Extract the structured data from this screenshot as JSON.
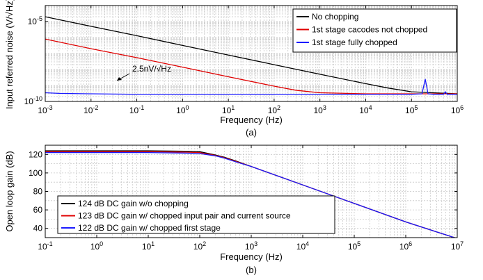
{
  "chart_data": [
    {
      "type": "line",
      "xlabel": "Frequency (Hz)",
      "ylabel": "Input referred noise (V/√Hz)",
      "caption": "(a)",
      "x_scale": "log",
      "y_scale": "log",
      "xlim": [
        0.001,
        1000000
      ],
      "ylim": [
        1e-10,
        0.0001
      ],
      "x_tick_values": [
        0.001,
        0.01,
        0.1,
        1,
        10,
        100,
        1000,
        10000,
        100000,
        1000000
      ],
      "x_tick_labels": [
        {
          "base": "10",
          "exp": "-3"
        },
        {
          "base": "10",
          "exp": "-2"
        },
        {
          "base": "10",
          "exp": "-1"
        },
        {
          "base": "10",
          "exp": "0"
        },
        {
          "base": "10",
          "exp": "1"
        },
        {
          "base": "10",
          "exp": "2"
        },
        {
          "base": "10",
          "exp": "3"
        },
        {
          "base": "10",
          "exp": "4"
        },
        {
          "base": "10",
          "exp": "5"
        },
        {
          "base": "10",
          "exp": "6"
        }
      ],
      "y_tick_values": [
        1e-10,
        1e-05
      ],
      "y_tick_labels": [
        {
          "base": "10",
          "exp": "-10"
        },
        {
          "base": "10",
          "exp": "-5"
        }
      ],
      "grid": true,
      "legend_position": "top-right",
      "annotation": "2.5nV/√Hz",
      "series": [
        {
          "name": "No chopping",
          "color": "#000000",
          "x": [
            0.001,
            0.01,
            0.1,
            1,
            10,
            100,
            1000,
            10000,
            30000,
            100000,
            1000000
          ],
          "y": [
            2e-05,
            5e-06,
            1.3e-06,
            3.2e-07,
            8e-08,
            2e-08,
            5e-09,
            1.3e-09,
            7e-10,
            4e-10,
            3e-10
          ]
        },
        {
          "name": "1st stage cacodes not chopped",
          "color": "#e00000",
          "x": [
            0.001,
            0.01,
            0.1,
            1,
            10,
            100,
            300,
            1000,
            10000,
            1000000
          ],
          "y": [
            8e-07,
            2e-07,
            5.5e-08,
            1.4e-08,
            3.5e-09,
            9e-10,
            5e-10,
            3.5e-10,
            3e-10,
            3e-10
          ]
        },
        {
          "name": "1st stage fully chopped",
          "color": "#1a1aff",
          "x": [
            0.001,
            0.002,
            0.01,
            0.1,
            100000,
            170000,
            200000,
            230000,
            300000,
            500000,
            550000,
            600000,
            1000000
          ],
          "y": [
            3.5e-10,
            3.2e-10,
            3e-10,
            2.8e-10,
            2.8e-10,
            3e-10,
            2.5e-09,
            3e-10,
            2.8e-10,
            2.8e-10,
            4e-10,
            2.8e-10,
            2.8e-10
          ]
        }
      ]
    },
    {
      "type": "line",
      "xlabel": "Frequency (Hz)",
      "ylabel": "Open loop gain (dB)",
      "caption": "(b)",
      "x_scale": "log",
      "xlim": [
        0.1,
        10000000
      ],
      "ylim": [
        30,
        130
      ],
      "x_tick_values": [
        0.1,
        1,
        10,
        100,
        1000,
        10000,
        100000,
        1000000,
        10000000
      ],
      "x_tick_labels": [
        {
          "base": "10",
          "exp": "-1"
        },
        {
          "base": "10",
          "exp": "0"
        },
        {
          "base": "10",
          "exp": "1"
        },
        {
          "base": "10",
          "exp": "2"
        },
        {
          "base": "10",
          "exp": "3"
        },
        {
          "base": "10",
          "exp": "4"
        },
        {
          "base": "10",
          "exp": "5"
        },
        {
          "base": "10",
          "exp": "6"
        },
        {
          "base": "10",
          "exp": "7"
        }
      ],
      "y_tick_values": [
        40,
        60,
        80,
        100,
        120
      ],
      "y_tick_labels": [
        "40",
        "60",
        "80",
        "100",
        "120"
      ],
      "grid": true,
      "legend_position": "bottom-left",
      "series": [
        {
          "name": "124 dB DC gain w/o chopping",
          "color": "#000000",
          "x": [
            0.1,
            10,
            50,
            100,
            200,
            300,
            500,
            1000,
            10000,
            100000,
            1000000,
            10000000
          ],
          "y": [
            124,
            124,
            123.5,
            123,
            119.5,
            117,
            113,
            107,
            87,
            67,
            47,
            29
          ]
        },
        {
          "name": "123 dB DC gain w/ chopped input pair and current source",
          "color": "#e00000",
          "x": [
            0.1,
            10,
            50,
            100,
            200,
            300,
            500,
            1000,
            10000,
            100000,
            1000000,
            10000000
          ],
          "y": [
            123,
            123,
            122.5,
            122,
            119,
            116.5,
            112.5,
            107,
            87,
            67,
            47,
            29
          ]
        },
        {
          "name": "122 dB DC gain w/ chopped first stage",
          "color": "#1a1aff",
          "x": [
            0.1,
            10,
            50,
            100,
            200,
            300,
            500,
            1000,
            10000,
            100000,
            1000000,
            10000000
          ],
          "y": [
            122,
            122,
            121.5,
            121,
            118.5,
            116,
            112,
            107,
            87,
            67,
            47,
            29
          ]
        }
      ]
    }
  ]
}
